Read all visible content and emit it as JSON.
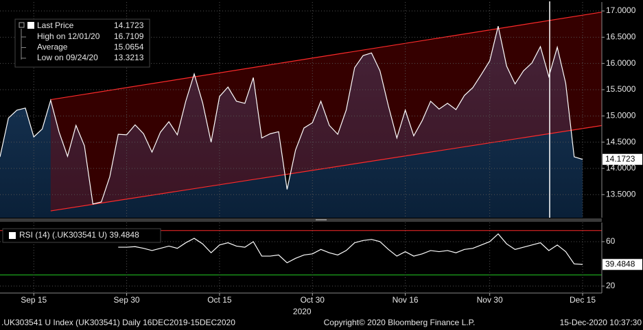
{
  "chart_data": [
    {
      "type": "line",
      "categories": [
        null,
        null,
        null,
        null,
        "Sep 15",
        null,
        null,
        null,
        null,
        null,
        null,
        null,
        null,
        null,
        null,
        "Sep 30",
        null,
        null,
        null,
        null,
        null,
        null,
        null,
        null,
        null,
        null,
        "Oct 15",
        null,
        null,
        null,
        null,
        null,
        null,
        null,
        null,
        null,
        null,
        "Oct 30",
        null,
        null,
        null,
        null,
        null,
        null,
        null,
        null,
        null,
        null,
        "Nov 16",
        null,
        null,
        null,
        null,
        null,
        null,
        null,
        null,
        null,
        "Nov 30",
        null,
        null,
        null,
        null,
        null,
        null,
        null,
        null,
        null,
        null,
        "Dec 15"
      ],
      "x_group_label": "2020",
      "series": [
        {
          "name": "Last Price",
          "color": "#ffffff",
          "values": [
            14.22,
            14.96,
            15.11,
            15.15,
            14.6,
            14.75,
            15.3,
            14.69,
            14.23,
            14.82,
            14.43,
            13.3213,
            13.36,
            13.84,
            14.65,
            14.64,
            14.83,
            14.66,
            14.31,
            14.69,
            14.89,
            14.64,
            15.28,
            15.8,
            15.25,
            14.5,
            15.37,
            15.55,
            15.28,
            15.24,
            15.73,
            14.58,
            14.66,
            14.7,
            13.6,
            14.35,
            14.77,
            14.87,
            15.28,
            14.82,
            14.65,
            15.11,
            15.92,
            16.15,
            16.2,
            15.86,
            15.19,
            14.58,
            15.11,
            14.62,
            14.91,
            15.28,
            15.13,
            15.24,
            15.12,
            15.39,
            15.54,
            15.79,
            16.05,
            16.7109,
            15.95,
            15.61,
            15.86,
            16.01,
            16.32,
            15.75,
            16.31,
            15.62,
            14.22,
            14.1723
          ]
        }
      ],
      "stats": [
        {
          "label": "High on 12/01/20",
          "value": 16.7109
        },
        {
          "label": "Average",
          "value": 15.0654
        },
        {
          "label": "Low on 09/24/20",
          "value": 13.3213
        }
      ],
      "channel": {
        "color": "#ff2a2a",
        "start": 6,
        "end": 69,
        "upper": [
          15.31,
          16.92
        ],
        "lower": [
          13.19,
          14.76
        ]
      },
      "ylim": [
        13.06,
        17.17
      ],
      "yticks": [
        {
          "value": 13.5,
          "label": "13.5000"
        },
        {
          "value": 14,
          "label": "14.0000"
        },
        {
          "value": 14.5,
          "label": "14.5000"
        },
        {
          "value": 15,
          "label": "15.0000"
        },
        {
          "value": 15.5,
          "label": "15.5000"
        },
        {
          "value": 16,
          "label": "16.0000"
        },
        {
          "value": 16.5,
          "label": "16.5000"
        },
        {
          "value": 17,
          "label": "17.0000"
        }
      ],
      "grid": true
    },
    {
      "type": "line",
      "series": [
        {
          "name": "RSI (14) (.UK303541 U)",
          "color": "#ffffff",
          "values": [
            null,
            null,
            null,
            null,
            null,
            null,
            null,
            null,
            null,
            null,
            null,
            null,
            null,
            null,
            55,
            55,
            55.5,
            54,
            52,
            54,
            56,
            54,
            59,
            63,
            58,
            50,
            57,
            59,
            56,
            55,
            60,
            47,
            47,
            48,
            41,
            45,
            48,
            49,
            53,
            50,
            48,
            52,
            59,
            61,
            62,
            60,
            53,
            47,
            51,
            47,
            49,
            52,
            51,
            52,
            50,
            53,
            54,
            57,
            60,
            67,
            58,
            53,
            55,
            57,
            59,
            52,
            57,
            51,
            40,
            39.4848
          ]
        }
      ],
      "levels": [
        {
          "value": 70,
          "color": "#ff2a2a"
        },
        {
          "value": 30,
          "color": "#22cc22"
        }
      ],
      "ylim": [
        13.8,
        77.2
      ],
      "yticks": [
        20,
        60
      ],
      "grid": true
    }
  ],
  "footer": {
    "left": ".UK303541 U Index (UK303541)  Daily 16DEC2019-15DEC2020",
    "center": "Copyright© 2020 Bloomberg Finance L.P.",
    "right": "15-Dec-2020 10:37:30"
  }
}
